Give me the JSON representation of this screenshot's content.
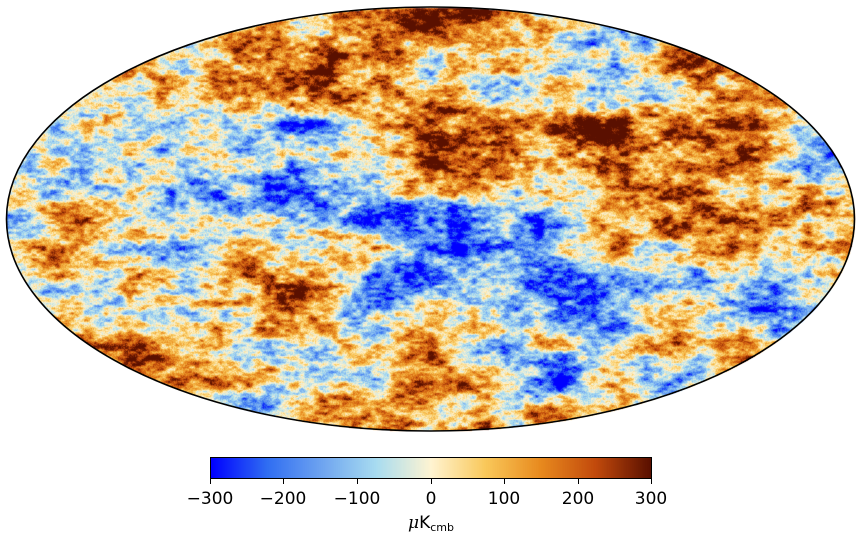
{
  "map": {
    "colormap": [
      "#0000ff",
      "#2f6df2",
      "#6ea4f0",
      "#a8dcf0",
      "#fff4d2",
      "#f9c85a",
      "#e88a1e",
      "#c24a0c",
      "#5a1000"
    ]
  },
  "colorbar": {
    "min": -300,
    "max": 300,
    "ticks": [
      "−300",
      "−200",
      "−100",
      "0",
      "100",
      "200",
      "300"
    ],
    "unit_symbol": "μ",
    "unit_main": "K",
    "unit_sub": "cmb"
  }
}
